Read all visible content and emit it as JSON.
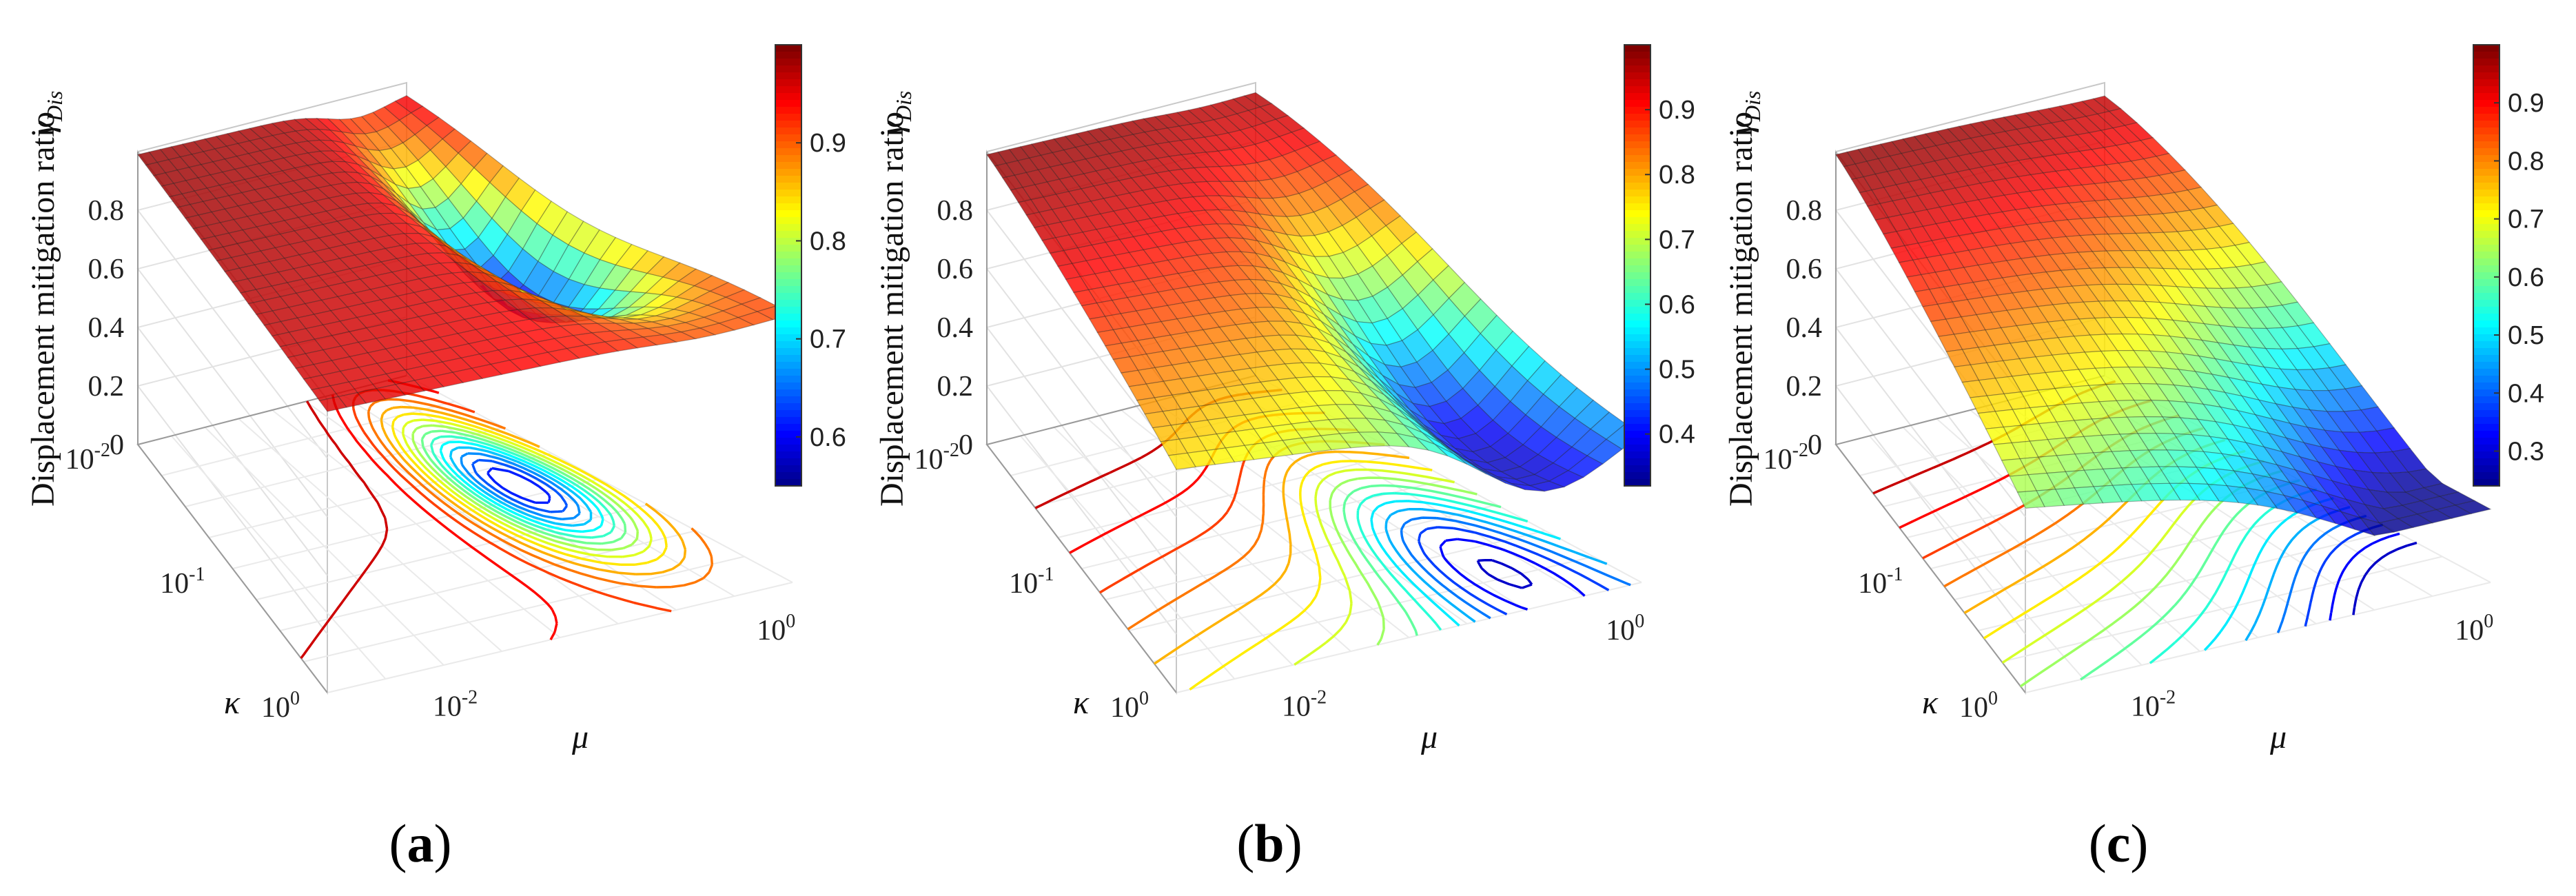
{
  "chart_data": [
    {
      "type": "surface3d",
      "panel_label": "a",
      "zlabel": "Displacement mitigation ratio",
      "zsymbol": "γ",
      "zsymbol_sub": "Dis",
      "xlabel": "μ",
      "ylabel": "κ",
      "x_ticks": [
        {
          "base": "10",
          "exp": "-2"
        },
        {
          "base": "10",
          "exp": "0"
        }
      ],
      "y_ticks": [
        {
          "base": "10",
          "exp": "-2"
        },
        {
          "base": "10",
          "exp": "-1"
        },
        {
          "base": "10",
          "exp": "0"
        }
      ],
      "z_ticks": [
        "0",
        "0.2",
        "0.4",
        "0.6",
        "0.8"
      ],
      "zlim": [
        0,
        1
      ],
      "colorbar": {
        "min": 0.55,
        "max": 1.0,
        "ticks": [
          "0.6",
          "0.7",
          "0.8",
          "0.9"
        ],
        "tick_values": [
          0.6,
          0.7,
          0.8,
          0.9
        ],
        "colormap": "jet"
      },
      "surface": {
        "min": 0.57,
        "max": 0.99,
        "valley_center": [
          0.82,
          0.45
        ],
        "valley_width": [
          0.16,
          0.32
        ],
        "valley_depth": 0.36,
        "front_drop": 0.05
      }
    },
    {
      "type": "surface3d",
      "panel_label": "b",
      "zlabel": "Displacement mitigation ratio",
      "zsymbol": "γ",
      "zsymbol_sub": "Dis",
      "xlabel": "μ",
      "ylabel": "κ",
      "x_ticks": [
        {
          "base": "10",
          "exp": "-2"
        },
        {
          "base": "10",
          "exp": "0"
        }
      ],
      "y_ticks": [
        {
          "base": "10",
          "exp": "-2"
        },
        {
          "base": "10",
          "exp": "-1"
        },
        {
          "base": "10",
          "exp": "0"
        }
      ],
      "z_ticks": [
        "0",
        "0.2",
        "0.4",
        "0.6",
        "0.8"
      ],
      "zlim": [
        0,
        1
      ],
      "colorbar": {
        "min": 0.32,
        "max": 1.0,
        "ticks": [
          "0.4",
          "0.5",
          "0.6",
          "0.7",
          "0.8",
          "0.9"
        ],
        "tick_values": [
          0.4,
          0.5,
          0.6,
          0.7,
          0.8,
          0.9
        ],
        "colormap": "jet"
      },
      "surface": {
        "min": 0.33,
        "max": 0.99,
        "valley_center": [
          0.8,
          0.75
        ],
        "valley_width": [
          0.2,
          0.4
        ],
        "valley_depth": 0.35,
        "front_drop": 0.38
      }
    },
    {
      "type": "surface3d",
      "panel_label": "c",
      "zlabel": "Displacement mitigation ratio",
      "zsymbol": "γ",
      "zsymbol_sub": "Dis",
      "xlabel": "μ",
      "ylabel": "κ",
      "x_ticks": [
        {
          "base": "10",
          "exp": "-2"
        },
        {
          "base": "10",
          "exp": "0"
        }
      ],
      "y_ticks": [
        {
          "base": "10",
          "exp": "-2"
        },
        {
          "base": "10",
          "exp": "-1"
        },
        {
          "base": "10",
          "exp": "0"
        }
      ],
      "z_ticks": [
        "0",
        "0.2",
        "0.4",
        "0.6",
        "0.8"
      ],
      "zlim": [
        0,
        1
      ],
      "colorbar": {
        "min": 0.24,
        "max": 1.0,
        "ticks": [
          "0.3",
          "0.4",
          "0.5",
          "0.6",
          "0.7",
          "0.8",
          "0.9"
        ],
        "tick_values": [
          0.3,
          0.4,
          0.5,
          0.6,
          0.7,
          0.8,
          0.9
        ],
        "colormap": "jet"
      },
      "surface": {
        "min": 0.25,
        "max": 0.99,
        "valley_center": [
          0.95,
          1.0
        ],
        "valley_width": [
          0.35,
          0.6
        ],
        "valley_depth": 0.25,
        "front_drop": 0.6
      }
    }
  ]
}
